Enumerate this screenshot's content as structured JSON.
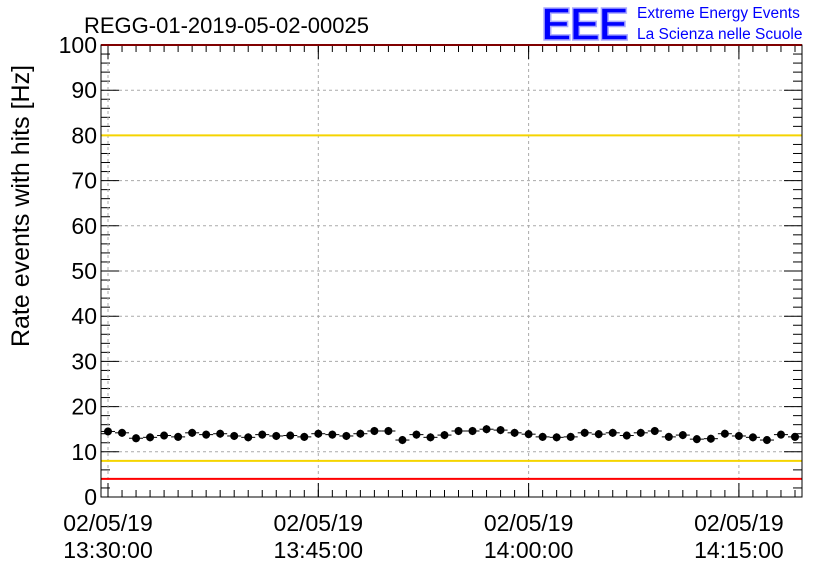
{
  "header": {
    "title": "REGG-01-2019-05-02-00025",
    "logo": "EEE",
    "logo_line1": "Extreme Energy Events",
    "logo_line2": "La Scienza nelle Scuole"
  },
  "colors": {
    "logo": "#0000ff",
    "red_threshold": "#ff0000",
    "yellow_threshold": "#f5d400",
    "markers": "#000000",
    "grid": "#aaaaaa"
  },
  "chart_data": {
    "type": "scatter",
    "ylabel": "Rate events with hits [Hz]",
    "xlabel": "",
    "ylim": [
      0,
      100
    ],
    "y_ticks": [
      "0",
      "10",
      "20",
      "30",
      "40",
      "50",
      "60",
      "70",
      "80",
      "90",
      "100"
    ],
    "x_range": [
      "13:29:30",
      "14:19:30"
    ],
    "x_ticks": [
      {
        "date": "02/05/19",
        "time": "13:30:00"
      },
      {
        "date": "02/05/19",
        "time": "13:45:00"
      },
      {
        "date": "02/05/19",
        "time": "14:00:00"
      },
      {
        "date": "02/05/19",
        "time": "14:15:00"
      }
    ],
    "grid": true,
    "reference_lines": [
      {
        "y": 100,
        "color": "red"
      },
      {
        "y": 80,
        "color": "yellow"
      },
      {
        "y": 8,
        "color": "yellow"
      },
      {
        "y": 4,
        "color": "red"
      }
    ],
    "series": [
      {
        "x": [
          "13:30:00",
          "13:31:00",
          "13:32:00",
          "13:33:00",
          "13:34:00",
          "13:35:00",
          "13:36:00",
          "13:37:00",
          "13:38:00",
          "13:39:00",
          "13:40:00",
          "13:41:00",
          "13:42:00",
          "13:43:00",
          "13:44:00",
          "13:45:00",
          "13:46:00",
          "13:47:00",
          "13:48:00",
          "13:49:00",
          "13:50:00",
          "13:51:00",
          "13:52:00",
          "13:53:00",
          "13:54:00",
          "13:55:00",
          "13:56:00",
          "13:57:00",
          "13:58:00",
          "13:59:00",
          "14:00:00",
          "14:01:00",
          "14:02:00",
          "14:03:00",
          "14:04:00",
          "14:05:00",
          "14:06:00",
          "14:07:00",
          "14:08:00",
          "14:09:00",
          "14:10:00",
          "14:11:00",
          "14:12:00",
          "14:13:00",
          "14:14:00",
          "14:15:00",
          "14:16:00",
          "14:17:00",
          "14:18:00",
          "14:19:00"
        ],
        "y": [
          14.5,
          14.2,
          13.0,
          13.2,
          13.6,
          13.3,
          14.2,
          13.8,
          14.0,
          13.5,
          13.2,
          13.8,
          13.5,
          13.6,
          13.3,
          14.0,
          13.8,
          13.5,
          14.0,
          14.6,
          14.6,
          12.6,
          13.8,
          13.2,
          13.7,
          14.6,
          14.6,
          15.0,
          14.8,
          14.2,
          13.9,
          13.3,
          13.2,
          13.3,
          14.2,
          13.9,
          14.2,
          13.6,
          14.2,
          14.6,
          13.3,
          13.7,
          12.8,
          12.9,
          14.0,
          13.5,
          13.2,
          12.6,
          13.8,
          13.3
        ],
        "yerr": 0.9
      }
    ]
  }
}
